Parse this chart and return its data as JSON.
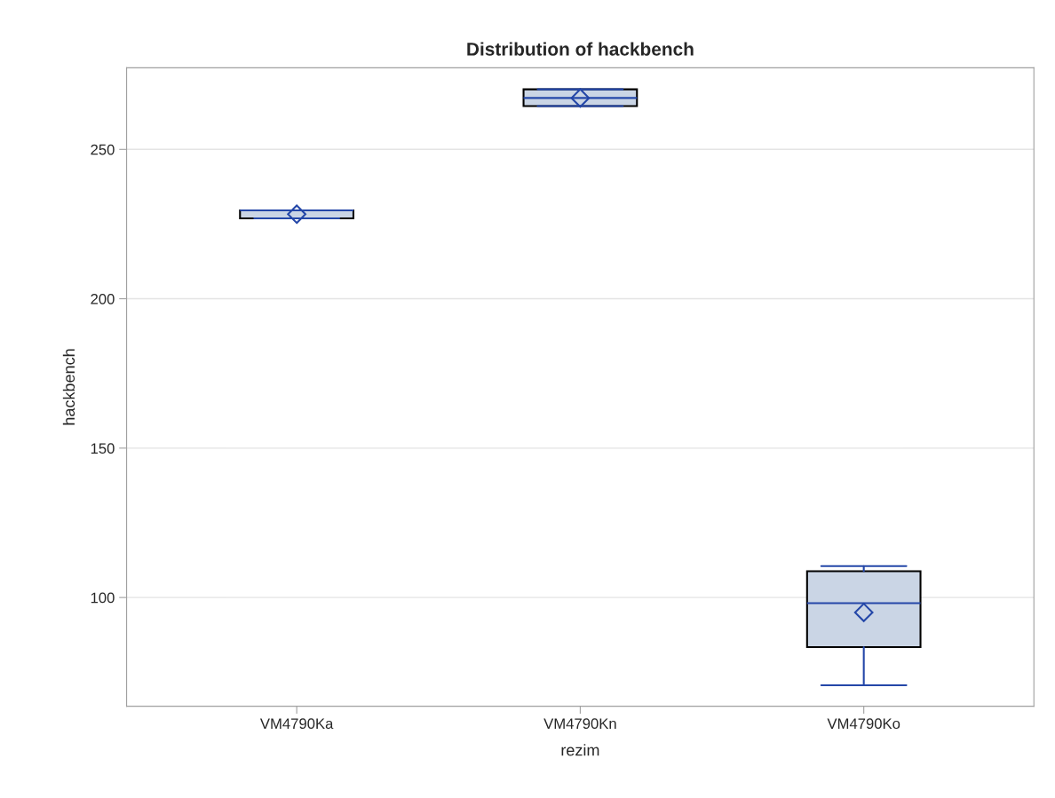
{
  "chart_data": {
    "type": "box",
    "title": "Distribution of hackbench",
    "xlabel": "rezim",
    "ylabel": "hackbench",
    "categories": [
      "VM4790Ka",
      "VM4790Kn",
      "VM4790Ko"
    ],
    "boxes": [
      {
        "low": 226.9,
        "q1": 226.9,
        "median": 229.6,
        "q3": 229.6,
        "high": 229.6,
        "mean": 228.3
      },
      {
        "low": 264.5,
        "q1": 264.5,
        "median": 267.2,
        "q3": 270.1,
        "high": 270.1,
        "mean": 267.2
      },
      {
        "low": 70.6,
        "q1": 83.4,
        "median": 98.1,
        "q3": 108.8,
        "high": 110.5,
        "mean": 95.0
      }
    ],
    "color": "#cad5e5",
    "ylim": [
      63.6,
      277.3
    ],
    "yticks": [
      100,
      150,
      200,
      250
    ],
    "grid": "y",
    "marker": "diamond"
  }
}
